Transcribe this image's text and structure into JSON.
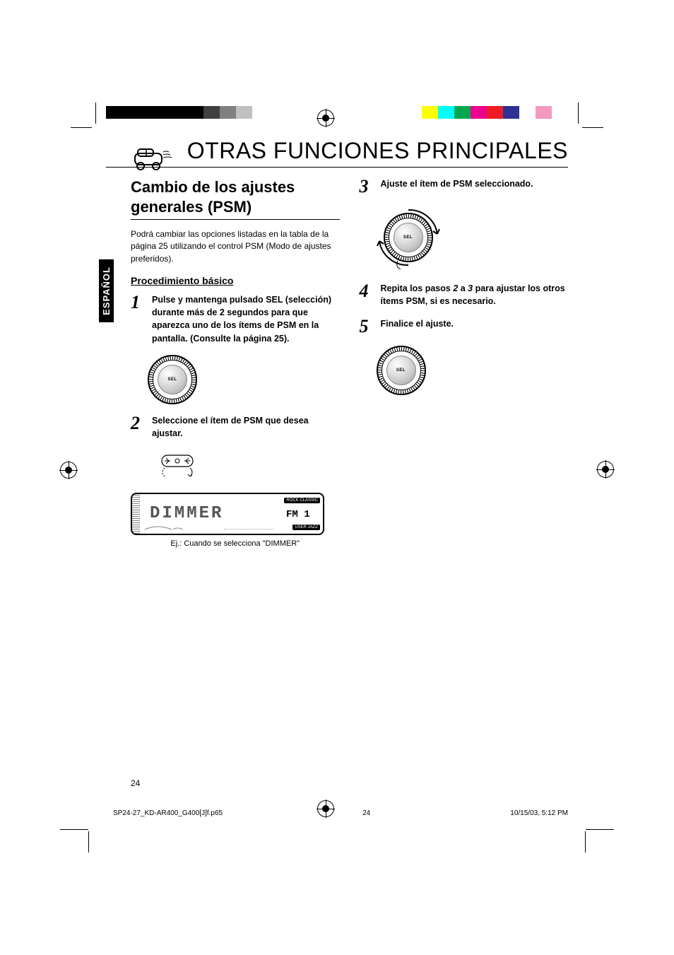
{
  "main_title": "OTRAS FUNCIONES PRINCIPALES",
  "side_tab": "ESPAÑOL",
  "subtitle": "Cambio de los ajustes generales (PSM)",
  "intro": "Podrá cambiar las opciones listadas en la tabla de la página 25 utilizando el control PSM (Modo de ajustes preferidos).",
  "proc_heading": "Procedimiento básico",
  "steps": {
    "s1": {
      "num": "1",
      "text": "Pulse y mantenga pulsado SEL (selección) durante más de 2 segundos para que aparezca uno de los ítems de PSM en la pantalla. (Consulte la página 25)."
    },
    "s2": {
      "num": "2",
      "text": "Seleccione el ítem de PSM que desea ajustar."
    },
    "s3": {
      "num": "3",
      "text": "Ajuste el ítem de PSM seleccionado."
    },
    "s4": {
      "num": "4",
      "pre": "Repita los pasos ",
      "mid1": "2",
      "mid2": " a ",
      "mid3": "3",
      "post": " para ajustar los otros ítems PSM, si es necesario."
    },
    "s5": {
      "num": "5",
      "text": "Finalice el ajuste."
    }
  },
  "knob_label": "SEL",
  "lcd": {
    "text": "DIMMER",
    "fm": "FM 1",
    "top_tag": "ROCK CLASSIC",
    "bot_tag": "USER JAZZ"
  },
  "lcd_caption": "Ej.: Cuando se selecciona \"DIMMER\"",
  "page_number": "24",
  "footer": {
    "file": "SP24-27_KD-AR400_G400[J]f.p65",
    "page": "24",
    "date": "10/15/03, 5:12 PM"
  },
  "colorbar_left": [
    "#000",
    "#000",
    "#000",
    "#000",
    "#000",
    "#000",
    "#404040",
    "#808080",
    "#c0c0c0",
    "#ffffff"
  ],
  "colorbar_right": [
    "#ffffff",
    "#ffff00",
    "#00ffff",
    "#00a651",
    "#ec008c",
    "#ed1c24",
    "#2e3192",
    "#ffffff",
    "#f49ac1",
    "#ffffff"
  ]
}
